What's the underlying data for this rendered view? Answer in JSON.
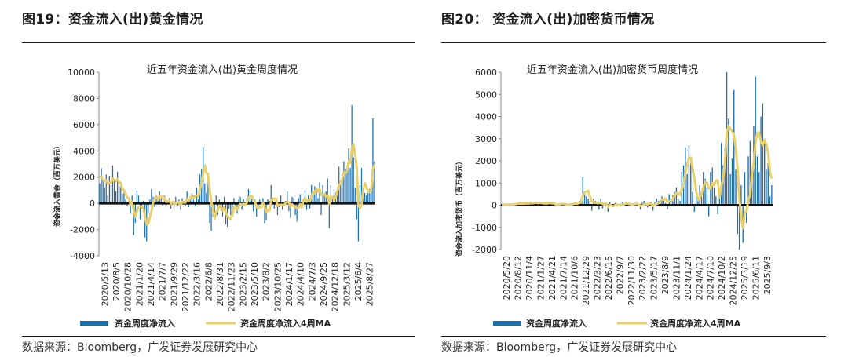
{
  "colors": {
    "bar": "#1f6fae",
    "ma": "#e8cf6a",
    "zero": "#111111"
  },
  "left": {
    "figure_title": "图19：资金流入(出)黄金情况",
    "source": "数据来源：Bloomberg，广发证券发展研究中心"
  },
  "right": {
    "figure_title": "图20：   资金流入(出)加密货币情况",
    "source": "数据来源：Bloomberg，广发证券发展研究中心"
  },
  "chart_data": [
    {
      "type": "bar+line",
      "title": "近五年资金流入(出)黄金周度情况",
      "ylabel": "资金流入黄金（百万美元）",
      "ylim": [
        -4000,
        10000
      ],
      "yticks": [
        "10000",
        "8000",
        "6000",
        "4000",
        "2000",
        "0",
        "-2000",
        "-4000"
      ],
      "xticks": [
        "2020/5/13",
        "2020/8/5",
        "2020/10/28",
        "2021/1/20",
        "2021/4/14",
        "2021/7/7",
        "2021/9/29",
        "2021/12/22",
        "2022/3/16",
        "2022/6/8",
        "2022/8/31",
        "2022/11/23",
        "2023/2/15",
        "2023/5/10",
        "2023/8/2",
        "2023/10/25",
        "2024/1/17",
        "2024/4/10",
        "2024/7/3",
        "2024/9/25",
        "2024/12/18",
        "2025/3/12",
        "2025/6/4",
        "2025/8/27"
      ],
      "legend": [
        "资金周度净流入",
        "资金周度净流入4周MA"
      ],
      "series": [
        {
          "name": "资金周度净流入",
          "kind": "bar",
          "values": [
            1500,
            2700,
            1800,
            1200,
            2200,
            600,
            2100,
            1400,
            2900,
            1800,
            900,
            2400,
            1300,
            1600,
            700,
            1100,
            300,
            -200,
            400,
            -800,
            600,
            -2400,
            -1500,
            1000,
            600,
            -1200,
            -400,
            200,
            -2600,
            -2900,
            -800,
            300,
            1100,
            500,
            -300,
            600,
            300,
            900,
            400,
            -200,
            600,
            -300,
            200,
            400,
            -400,
            200,
            -300,
            500,
            -200,
            300,
            -500,
            400,
            200,
            -200,
            900,
            -300,
            500,
            800,
            600,
            -200,
            1200,
            300,
            2200,
            2600,
            4300,
            1500,
            800,
            1900,
            -1500,
            -2100,
            -1000,
            -700,
            600,
            -900,
            300,
            -600,
            -1000,
            500,
            -1600,
            -1800,
            -400,
            -900,
            -300,
            400,
            -200,
            -800,
            300,
            500,
            -500,
            300,
            -200,
            400,
            1100,
            900,
            400,
            -600,
            300,
            -1000,
            -300,
            300,
            -200,
            400,
            -1500,
            -1300,
            300,
            200,
            1400,
            300,
            -400,
            200,
            -900,
            -300,
            600,
            -500,
            -200,
            200,
            900,
            -600,
            -1100,
            500,
            400,
            -900,
            -1400,
            400,
            700,
            -300,
            300,
            1000,
            -500,
            600,
            -400,
            1400,
            800,
            1300,
            1100,
            400,
            1600,
            -900,
            1400,
            700,
            900,
            1900,
            -1900,
            1400,
            500,
            1100,
            800,
            1200,
            2800,
            1400,
            2000,
            3200,
            2600,
            2900,
            4200,
            2700,
            7500,
            3500,
            1200,
            -1200,
            -2900,
            1400,
            2700,
            1200,
            800,
            600,
            900,
            1100,
            1800,
            6500,
            3200
          ]
        },
        {
          "name": "资金周度净流入4周MA",
          "kind": "line",
          "values": [
            2000,
            2050,
            1800,
            1700,
            1750,
            1500,
            1575,
            1575,
            1900,
            1780,
            1700,
            1850,
            1600,
            1550,
            1050,
            1000,
            700,
            450,
            400,
            -75,
            125,
            -550,
            -1050,
            -600,
            -325,
            -275,
            -250,
            -350,
            -1000,
            -1600,
            -1550,
            -1075,
            -600,
            50,
            400,
            475,
            275,
            575,
            550,
            350,
            425,
            125,
            125,
            225,
            -25,
            100,
            -25,
            0,
            50,
            75,
            -125,
            100,
            75,
            50,
            325,
            200,
            350,
            575,
            375,
            550,
            600,
            525,
            1050,
            1600,
            2300,
            2900,
            2300,
            2250,
            1000,
            125,
            -425,
            -1175,
            -725,
            -500,
            -175,
            -275,
            -550,
            -300,
            -725,
            -975,
            -1125,
            -1175,
            -900,
            -300,
            -275,
            -475,
            -225,
            -50,
            -100,
            -25,
            -150,
            50,
            375,
            550,
            600,
            200,
            150,
            -250,
            -400,
            -250,
            -300,
            50,
            -250,
            -675,
            -475,
            -550,
            150,
            375,
            325,
            375,
            -175,
            -125,
            -100,
            -125,
            -125,
            25,
            100,
            75,
            -250,
            -75,
            -200,
            -275,
            -375,
            -325,
            -50,
            -325,
            225,
            425,
            125,
            250,
            175,
            575,
            850,
            775,
            1150,
            900,
            1100,
            625,
            625,
            700,
            525,
            650,
            -25,
            525,
            475,
            275,
            475,
            900,
            1350,
            1550,
            1850,
            2350,
            2300,
            2425,
            3200,
            3100,
            4225,
            4500,
            3725,
            2750,
            -100,
            -375,
            -25,
            1100,
            1525,
            1275,
            875,
            850,
            1100,
            2575,
            3000
          ]
        }
      ]
    },
    {
      "type": "bar+line",
      "title": "近五年资金流入(出)加密货币周度情况",
      "ylabel": "资金流入加密货币（百万美元）",
      "ylim": [
        -2000,
        6000
      ],
      "yticks": [
        "6000",
        "5000",
        "4000",
        "3000",
        "2000",
        "1000",
        "0",
        "-1000",
        "-2000"
      ],
      "xticks": [
        "2020/5/20",
        "2020/8/12",
        "2020/11/4",
        "2021/1/27",
        "2021/4/21",
        "2021/7/14",
        "2021/10/6",
        "2021/12/29",
        "2022/3/23",
        "2022/6/15",
        "2022/9/7",
        "2022/11/30",
        "2023/2/22",
        "2023/5/17",
        "2023/8/9",
        "2023/11/1",
        "2024/1/24",
        "2024/4/17",
        "2024/7/10",
        "2024/10/2",
        "2024/12/25",
        "2025/3/19",
        "2025/6/11",
        "2025/9/3"
      ],
      "legend": [
        "资金周度净流入",
        "资金周度净流入4周MA"
      ],
      "series": [
        {
          "name": "资金周度净流入",
          "kind": "bar",
          "values": [
            30,
            20,
            40,
            10,
            30,
            60,
            20,
            50,
            80,
            100,
            60,
            30,
            80,
            120,
            60,
            40,
            150,
            80,
            100,
            120,
            60,
            140,
            80,
            40,
            100,
            60,
            150,
            80,
            20,
            80,
            -60,
            40,
            60,
            90,
            30,
            20,
            -40,
            60,
            80,
            40,
            60,
            110,
            40,
            200,
            180,
            1300,
            600,
            400,
            300,
            200,
            -250,
            300,
            200,
            100,
            -200,
            300,
            -150,
            100,
            60,
            -300,
            150,
            50,
            -80,
            100,
            40,
            -60,
            30,
            120,
            60,
            80,
            50,
            -40,
            30,
            90,
            100,
            60,
            -50,
            -200,
            120,
            200,
            100,
            -100,
            80,
            150,
            -250,
            120,
            300,
            200,
            100,
            400,
            300,
            100,
            -200,
            500,
            300,
            450,
            600,
            800,
            300,
            200,
            1500,
            1800,
            2600,
            1400,
            2700,
            1900,
            600,
            -300,
            400,
            200,
            900,
            600,
            1500,
            1200,
            800,
            -500,
            1500,
            1700,
            800,
            400,
            -400,
            600,
            2800,
            1800,
            2600,
            6000,
            3900,
            1400,
            2100,
            5200,
            1600,
            -1300,
            -2000,
            900,
            -1700,
            1500,
            -800,
            2200,
            2900,
            1100,
            3600,
            5800,
            2200,
            1500,
            4000,
            4600,
            3000,
            1600,
            1900,
            400,
            900
          ]
        },
        {
          "name": "资金周度净流入4周MA",
          "kind": "line",
          "values": [
            20,
            25,
            30,
            25,
            25,
            30,
            30,
            40,
            53,
            63,
            73,
            68,
            68,
            73,
            73,
            75,
            93,
            83,
            95,
            113,
            90,
            105,
            100,
            80,
            85,
            75,
            90,
            98,
            78,
            83,
            18,
            20,
            30,
            58,
            55,
            50,
            25,
            18,
            30,
            35,
            60,
            73,
            63,
            103,
            133,
            430,
            570,
            620,
            650,
            375,
            163,
            163,
            113,
            88,
            100,
            100,
            63,
            13,
            78,
            -73,
            3,
            -13,
            -45,
            5,
            28,
            0,
            28,
            23,
            38,
            73,
            78,
            43,
            30,
            33,
            45,
            63,
            25,
            -23,
            -13,
            18,
            55,
            30,
            70,
            58,
            -30,
            28,
            48,
            93,
            180,
            250,
            250,
            300,
            150,
            175,
            175,
            263,
            463,
            538,
            538,
            475,
            700,
            950,
            1525,
            1825,
            2125,
            2150,
            1650,
            1225,
            650,
            225,
            300,
            525,
            800,
            1050,
            1025,
            750,
            750,
            1000,
            900,
            1100,
            1125,
            350,
            850,
            1200,
            1950,
            3300,
            3575,
            3425,
            3350,
            3150,
            2575,
            1650,
            375,
            -575,
            -1025,
            -300,
            -275,
            275,
            450,
            1400,
            1850,
            2850,
            3275,
            3275,
            2875,
            2700,
            2950,
            2725,
            2375,
            1475,
            1200
          ]
        }
      ]
    }
  ]
}
